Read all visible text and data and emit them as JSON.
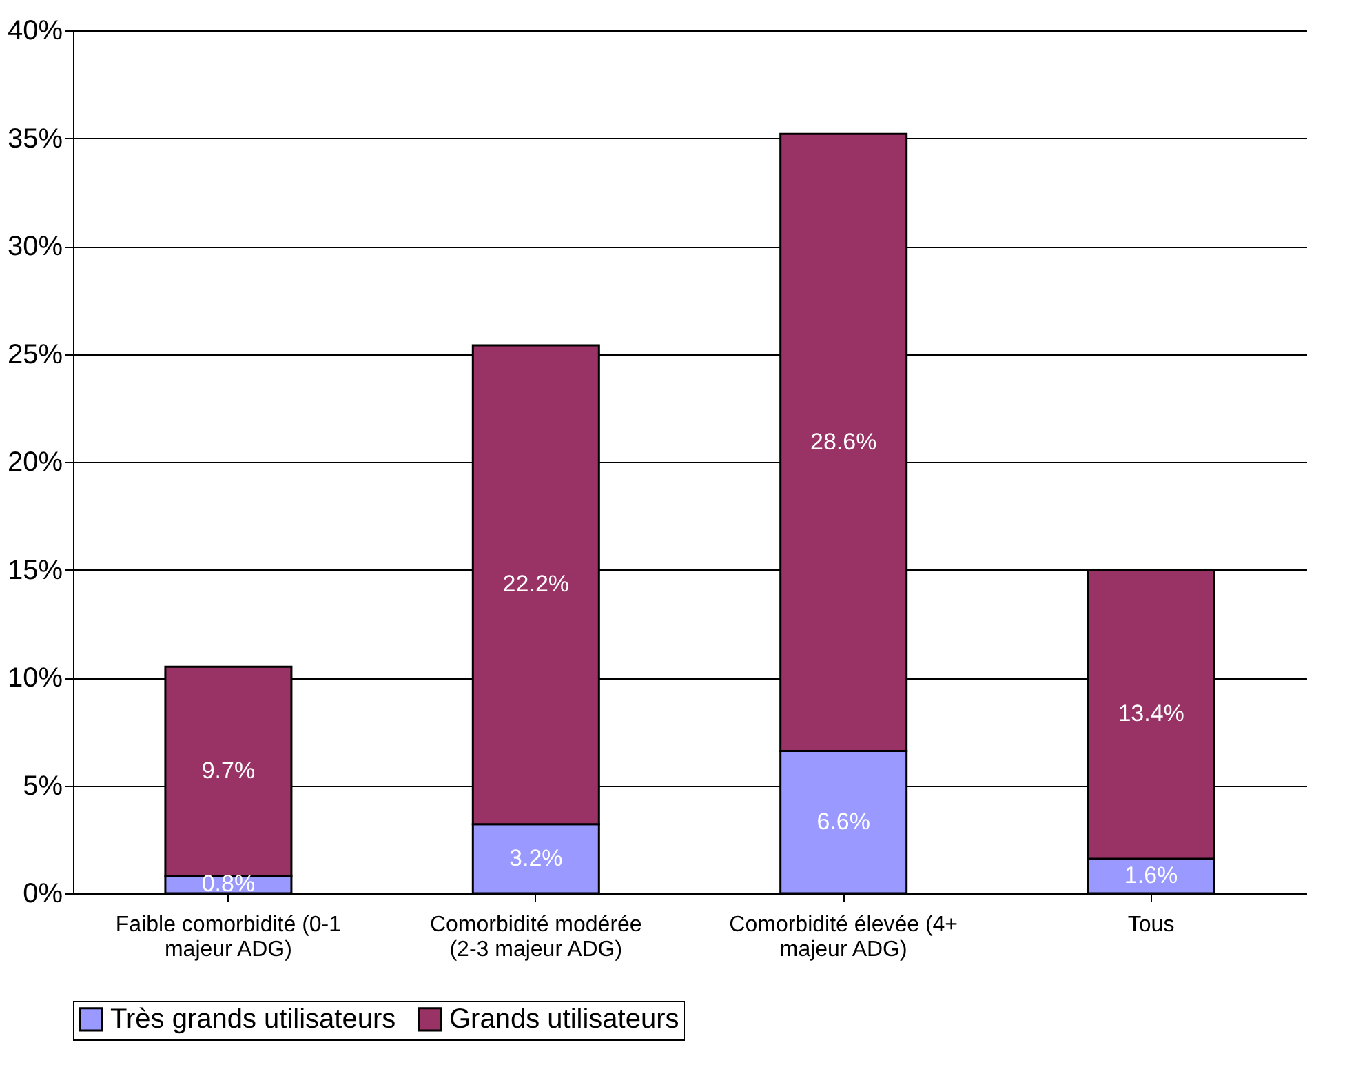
{
  "chart_data": {
    "type": "bar",
    "stacked": true,
    "categories": [
      "Faible comorbidité (0-1 majeur ADG)",
      "Comorbidité modérée (2-3 majeur ADG)",
      "Comorbidité élevée (4+ majeur ADG)",
      "Tous"
    ],
    "series": [
      {
        "name": "Très grands utilisateurs",
        "color": "#9999ff",
        "values": [
          0.8,
          3.2,
          6.6,
          1.6
        ],
        "value_labels": [
          "0.8%",
          "3.2%",
          "6.6%",
          "1.6%"
        ]
      },
      {
        "name": "Grands utilisateurs",
        "color": "#993366",
        "values": [
          9.7,
          22.2,
          28.6,
          13.4
        ],
        "value_labels": [
          "9.7%",
          "22.2%",
          "28.6%",
          "13.4%"
        ]
      }
    ],
    "ylim": [
      0,
      40
    ],
    "yticks": [
      {
        "value": 0,
        "label": "0%"
      },
      {
        "value": 5,
        "label": "5%"
      },
      {
        "value": 10,
        "label": "10%"
      },
      {
        "value": 15,
        "label": "15%"
      },
      {
        "value": 20,
        "label": "20%"
      },
      {
        "value": 25,
        "label": "25%"
      },
      {
        "value": 30,
        "label": "30%"
      },
      {
        "value": 35,
        "label": "35%"
      },
      {
        "value": 40,
        "label": "40%"
      }
    ],
    "grid": "y",
    "legend": "bottom"
  }
}
